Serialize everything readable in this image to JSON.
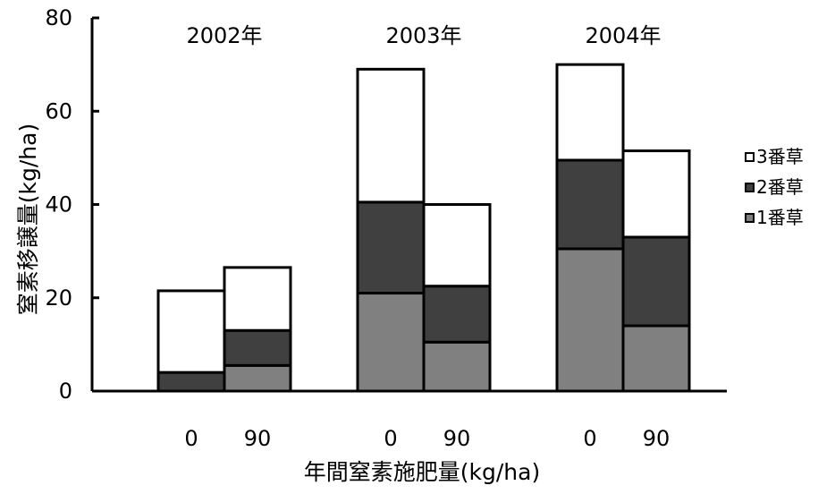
{
  "chart_data": {
    "type": "bar",
    "stacked": true,
    "ylabel": "窒素移譲量(kg/ha)",
    "xlabel": "年間窒素施肥量(kg/ha)",
    "ylim": [
      0,
      80
    ],
    "yticks": [
      "0",
      "20",
      "40",
      "60",
      "80"
    ],
    "groups": [
      {
        "label": "2002年",
        "categories": [
          "0",
          "90"
        ]
      },
      {
        "label": "2003年",
        "categories": [
          "0",
          "90"
        ]
      },
      {
        "label": "2004年",
        "categories": [
          "0",
          "90"
        ]
      }
    ],
    "series": [
      {
        "name": "1番草",
        "color": "#808080",
        "values": [
          0,
          5.5,
          21,
          10.5,
          30.5,
          14
        ]
      },
      {
        "name": "2番草",
        "color": "#404040",
        "values": [
          4,
          7.5,
          19.5,
          12,
          19,
          19
        ]
      },
      {
        "name": "3番草",
        "color": "#ffffff",
        "values": [
          17.5,
          13.5,
          28.5,
          17.5,
          20.5,
          18.5
        ]
      }
    ],
    "grid": false,
    "legend_position": "right"
  },
  "legend": {
    "items": [
      {
        "label": "3番草",
        "color": "#ffffff"
      },
      {
        "label": "2番草",
        "color": "#404040"
      },
      {
        "label": "1番草",
        "color": "#808080"
      }
    ]
  }
}
